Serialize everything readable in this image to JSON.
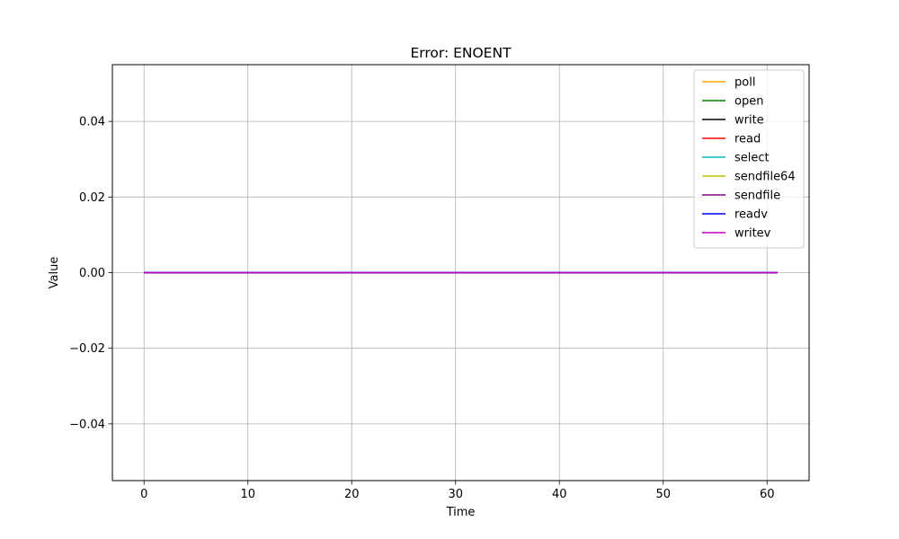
{
  "chart_data": {
    "type": "line",
    "title": "Error: ENOENT",
    "xlabel": "Time",
    "ylabel": "Value",
    "xlim": [
      -3.05,
      64.05
    ],
    "ylim": [
      -0.055,
      0.055
    ],
    "xticks": [
      0,
      10,
      20,
      30,
      40,
      50,
      60
    ],
    "xtick_labels": [
      "0",
      "10",
      "20",
      "30",
      "40",
      "50",
      "60"
    ],
    "yticks": [
      -0.04,
      -0.02,
      0.0,
      0.02,
      0.04
    ],
    "ytick_labels": [
      "−0.04",
      "−0.02",
      "0.00",
      "0.02",
      "0.04"
    ],
    "grid": true,
    "legend_position": "top-right",
    "x_range": [
      0,
      61
    ],
    "series": [
      {
        "name": "poll",
        "color": "#ffa500",
        "x": [
          0,
          61
        ],
        "values": [
          0,
          0
        ]
      },
      {
        "name": "open",
        "color": "#008000",
        "x": [
          0,
          61
        ],
        "values": [
          0,
          0
        ]
      },
      {
        "name": "write",
        "color": "#000000",
        "x": [
          0,
          61
        ],
        "values": [
          0,
          0
        ]
      },
      {
        "name": "read",
        "color": "#ff0000",
        "x": [
          0,
          61
        ],
        "values": [
          0,
          0
        ]
      },
      {
        "name": "select",
        "color": "#00bfbf",
        "x": [
          0,
          61
        ],
        "values": [
          0,
          0
        ]
      },
      {
        "name": "sendfile64",
        "color": "#bfbf00",
        "x": [
          0,
          61
        ],
        "values": [
          0,
          0
        ]
      },
      {
        "name": "sendfile",
        "color": "#800080",
        "x": [
          0,
          61
        ],
        "values": [
          0,
          0
        ]
      },
      {
        "name": "readv",
        "color": "#0000ff",
        "x": [
          0,
          61
        ],
        "values": [
          0,
          0
        ]
      },
      {
        "name": "writev",
        "color": "#bf00bf",
        "x": [
          0,
          61
        ],
        "values": [
          0,
          0
        ]
      }
    ]
  }
}
